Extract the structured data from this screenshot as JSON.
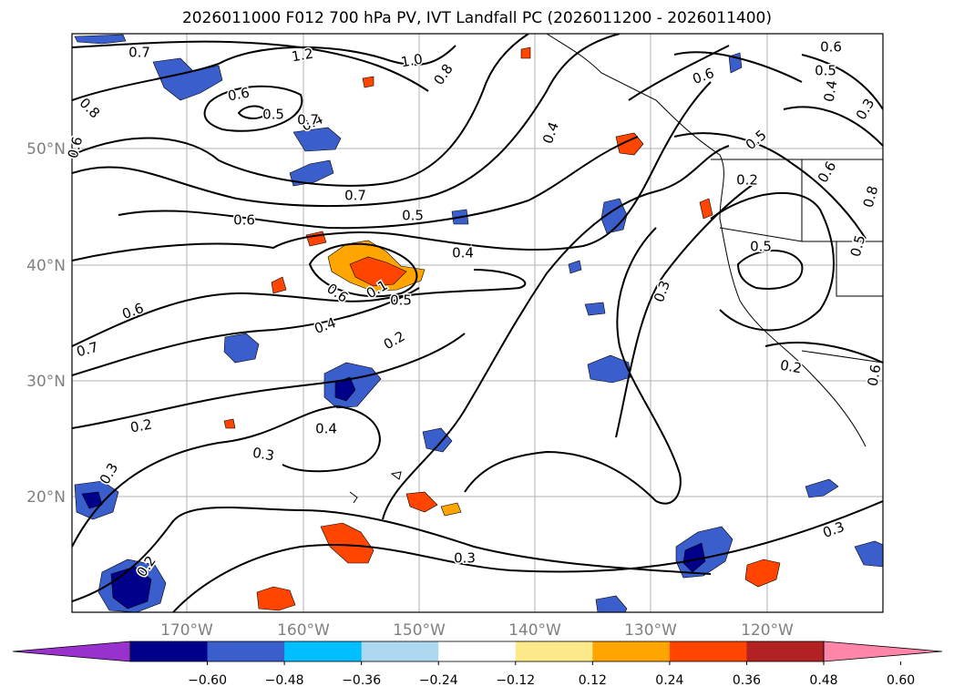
{
  "title": "2026011000 F012 700 hPa PV, IVT Landfall PC (2026011200 - 2026011400)",
  "map": {
    "lat_labels": [
      "50°N",
      "40°N",
      "30°N",
      "20°N"
    ],
    "lon_labels": [
      "170°W",
      "160°W",
      "150°W",
      "140°W",
      "130°W",
      "120°W"
    ],
    "gridlines": true,
    "contour_color": "#000000",
    "contour_labels": [
      "0.7",
      "1.2",
      "1.0",
      "0.8",
      "0.6",
      "0.5",
      "0.4",
      "0.8",
      "0.6",
      "0.7",
      "0.7",
      "0.6",
      "0.5",
      "0.4",
      "0.5",
      "0.6",
      "0.1",
      "0.6",
      "0.4",
      "0.2",
      "0.7",
      "0.2",
      "0.4",
      "0.3",
      "0.3",
      "0.2",
      "0.2",
      "0.3",
      "0.3",
      "0.3",
      "0.4",
      "0.5",
      "0.6",
      "0.2",
      "0.5",
      "0.6",
      "0.6",
      "0.5",
      "0.4",
      "0.3",
      "0.8",
      "0.5",
      "0.6"
    ]
  },
  "colorbar": {
    "ticks": [
      "−0.60",
      "−0.48",
      "−0.36",
      "−0.24",
      "−0.12",
      "0.12",
      "0.24",
      "0.36",
      "0.48",
      "0.60"
    ],
    "colors": [
      "#9932cc",
      "#00008b",
      "#3a5fcd",
      "#00bfff",
      "#add8f0",
      "#ffffff",
      "#fce98a",
      "#ffa500",
      "#ff4500",
      "#b22222",
      "#ff85a9"
    ]
  }
}
